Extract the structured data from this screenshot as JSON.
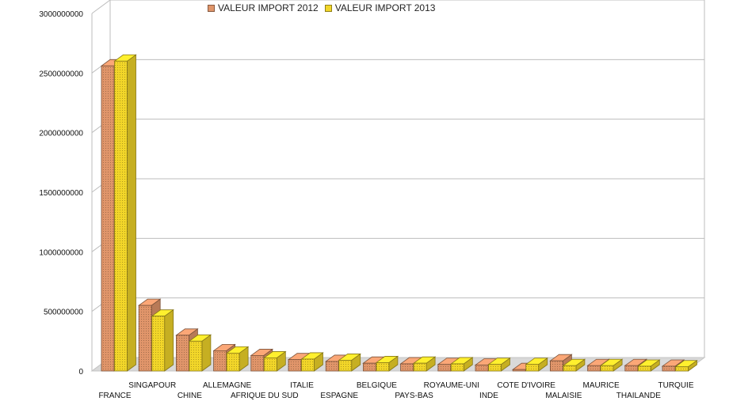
{
  "chart_data": {
    "type": "bar",
    "title": "",
    "xlabel": "",
    "ylabel": "",
    "ylim": [
      0,
      3000000000
    ],
    "yticks": [
      0,
      500000000,
      1000000000,
      1500000000,
      2000000000,
      2500000000,
      3000000000
    ],
    "grid": true,
    "legend_position": "top",
    "categories": [
      "FRANCE",
      "SINGAPOUR",
      "CHINE",
      "ALLEMAGNE",
      "AFRIQUE DU SUD",
      "ITALIE",
      "ESPAGNE",
      "BELGIQUE",
      "PAYS-BAS",
      "ROYAUME-UNI",
      "INDE",
      "COTE D'IVOIRE",
      "MALAISIE",
      "MAURICE",
      "THAILANDE",
      "TURQUIE"
    ],
    "series": [
      {
        "name": "VALEUR IMPORT 2012",
        "color": "#e0956a",
        "values": [
          2560000000,
          550000000,
          300000000,
          170000000,
          130000000,
          95000000,
          80000000,
          65000000,
          60000000,
          55000000,
          50000000,
          12000000,
          85000000,
          45000000,
          45000000,
          40000000
        ]
      },
      {
        "name": "VALEUR IMPORT 2013",
        "color": "#f2d629",
        "values": [
          2600000000,
          460000000,
          250000000,
          150000000,
          110000000,
          100000000,
          90000000,
          70000000,
          65000000,
          60000000,
          55000000,
          55000000,
          45000000,
          45000000,
          40000000,
          35000000
        ]
      }
    ]
  }
}
